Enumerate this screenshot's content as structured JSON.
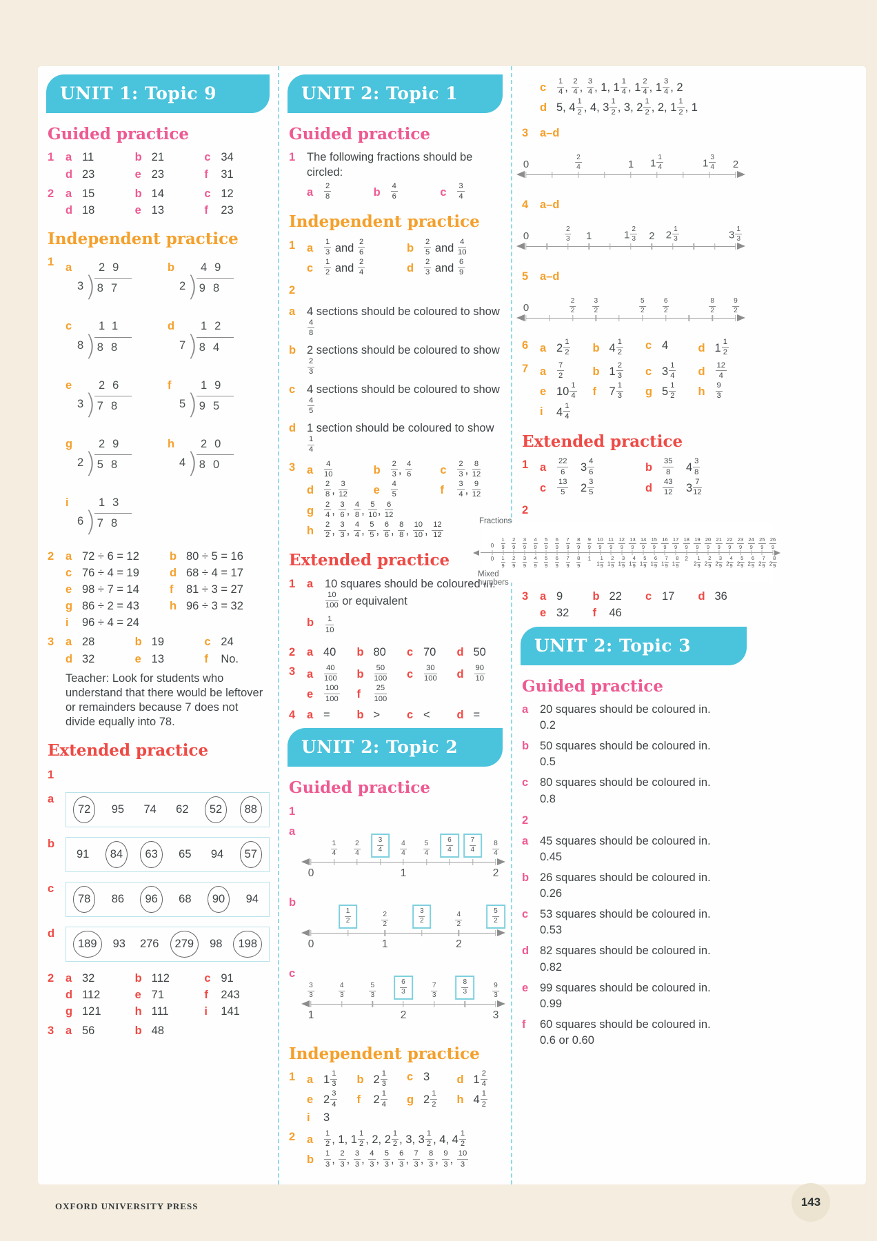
{
  "footer": {
    "press": "OXFORD UNIVERSITY PRESS",
    "page": "143"
  },
  "colors": {
    "banner_teal": "#4ac3dc",
    "pink": "#ee5a92",
    "orange": "#f4a02c",
    "red": "#ee4a45",
    "body": "#3f4446",
    "cream": "#f4ede0",
    "box_teal": "#7ed0de"
  },
  "u1t9": {
    "title": "UNIT 1: Topic 9",
    "gp_h": "Guided practice",
    "ip_h": "Independent practice",
    "ep_h": "Extended practice",
    "gp1": {
      "n": "1",
      "items": [
        {
          "l": "a",
          "v": "11"
        },
        {
          "l": "b",
          "v": "21"
        },
        {
          "l": "c",
          "v": "34"
        },
        {
          "l": "d",
          "v": "23"
        },
        {
          "l": "e",
          "v": "23"
        },
        {
          "l": "f",
          "v": "31"
        }
      ]
    },
    "gp2": {
      "n": "2",
      "items": [
        {
          "l": "a",
          "v": "15"
        },
        {
          "l": "b",
          "v": "14"
        },
        {
          "l": "c",
          "v": "12"
        },
        {
          "l": "d",
          "v": "18"
        },
        {
          "l": "e",
          "v": "13"
        },
        {
          "l": "f",
          "v": "23"
        }
      ]
    },
    "div": {
      "n": "1",
      "items": [
        {
          "l": "a",
          "q": "29",
          "s": "3",
          "d": "87"
        },
        {
          "l": "b",
          "q": "49",
          "s": "2",
          "d": "98"
        },
        {
          "l": "c",
          "q": "11",
          "s": "8",
          "d": "88"
        },
        {
          "l": "d",
          "q": "12",
          "s": "7",
          "d": "84"
        },
        {
          "l": "e",
          "q": "26",
          "s": "3",
          "d": "78"
        },
        {
          "l": "f",
          "q": "19",
          "s": "5",
          "d": "95"
        },
        {
          "l": "g",
          "q": "29",
          "s": "2",
          "d": "58"
        },
        {
          "l": "h",
          "q": "20",
          "s": "4",
          "d": "80"
        },
        {
          "l": "i",
          "q": "13",
          "s": "6",
          "d": "78"
        }
      ]
    },
    "ip2": {
      "n": "2",
      "items": [
        {
          "l": "a",
          "v": "72 ÷ 6 = 12"
        },
        {
          "l": "b",
          "v": "80 ÷ 5 = 16"
        },
        {
          "l": "c",
          "v": "76 ÷ 4 = 19"
        },
        {
          "l": "d",
          "v": "68 ÷ 4 = 17"
        },
        {
          "l": "e",
          "v": "98 ÷ 7 = 14"
        },
        {
          "l": "f",
          "v": "81 ÷ 3 = 27"
        },
        {
          "l": "g",
          "v": "86 ÷ 2 = 43"
        },
        {
          "l": "h",
          "v": "96 ÷ 3 = 32"
        },
        {
          "l": "i",
          "v": "96 ÷ 4 = 24"
        }
      ]
    },
    "ip3": {
      "n": "3",
      "items": [
        {
          "l": "a",
          "v": "28"
        },
        {
          "l": "b",
          "v": "19"
        },
        {
          "l": "c",
          "v": "24"
        },
        {
          "l": "d",
          "v": "32"
        },
        {
          "l": "e",
          "v": "13"
        },
        {
          "l": "f",
          "v": "No."
        }
      ]
    },
    "note": "Teacher: Look for students who understand that there would be leftover or remainders because 7 does not divide equally into 78.",
    "ep1": {
      "n": "1",
      "rows": [
        {
          "l": "a",
          "items": [
            {
              "v": "72",
              "c": true
            },
            {
              "v": "95"
            },
            {
              "v": "74"
            },
            {
              "v": "62"
            },
            {
              "v": "52",
              "c": true
            },
            {
              "v": "88",
              "c": true
            }
          ]
        },
        {
          "l": "b",
          "items": [
            {
              "v": "91"
            },
            {
              "v": "84",
              "c": true
            },
            {
              "v": "63",
              "c": true
            },
            {
              "v": "65"
            },
            {
              "v": "94"
            },
            {
              "v": "57",
              "c": true
            }
          ]
        },
        {
          "l": "c",
          "items": [
            {
              "v": "78",
              "c": true
            },
            {
              "v": "86"
            },
            {
              "v": "96",
              "c": true
            },
            {
              "v": "68"
            },
            {
              "v": "90",
              "c": true
            },
            {
              "v": "94"
            }
          ]
        },
        {
          "l": "d",
          "items": [
            {
              "v": "189",
              "c": true
            },
            {
              "v": "93"
            },
            {
              "v": "276"
            },
            {
              "v": "279",
              "c": true
            },
            {
              "v": "98"
            },
            {
              "v": "198",
              "c": true
            }
          ]
        }
      ]
    },
    "ep2": {
      "n": "2",
      "items": [
        {
          "l": "a",
          "v": "32"
        },
        {
          "l": "b",
          "v": "112"
        },
        {
          "l": "c",
          "v": "91"
        },
        {
          "l": "d",
          "v": "112"
        },
        {
          "l": "e",
          "v": "71"
        },
        {
          "l": "f",
          "v": "243"
        },
        {
          "l": "g",
          "v": "121"
        },
        {
          "l": "h",
          "v": "111"
        },
        {
          "l": "i",
          "v": "141"
        }
      ]
    },
    "ep3": {
      "n": "3",
      "items": [
        {
          "l": "a",
          "v": "56"
        },
        {
          "l": "b",
          "v": "48"
        }
      ]
    }
  },
  "u2t1": {
    "title": "UNIT 2: Topic 1",
    "gp_h": "Guided practice",
    "ip_h": "Independent practice",
    "ep_h": "Extended practice",
    "gp1": {
      "n": "1",
      "text": "The following fractions should be circled:",
      "items": [
        {
          "l": "a",
          "v": "{2/8}"
        },
        {
          "l": "b",
          "v": "{4/6}"
        },
        {
          "l": "c",
          "v": "{3/4}"
        }
      ]
    },
    "ip1": {
      "n": "1",
      "items": [
        {
          "l": "a",
          "v": "{1/3} and {2/6}"
        },
        {
          "l": "b",
          "v": "{2/5} and {4/10}"
        },
        {
          "l": "c",
          "v": "{1/2} and {2/4}"
        },
        {
          "l": "d",
          "v": "{2/3} and {6/9}"
        }
      ]
    },
    "ip2": {
      "n": "2",
      "items": [
        {
          "l": "a",
          "t": "4 sections should be coloured to show {4/8}"
        },
        {
          "l": "b",
          "t": "2 sections should be coloured to show {2/3}"
        },
        {
          "l": "c",
          "t": "4 sections should be coloured to show {4/5}"
        },
        {
          "l": "d",
          "t": "1 section should be coloured to show {1/4}"
        }
      ]
    },
    "ip3a": {
      "n": "3",
      "items": [
        {
          "l": "a",
          "v": "{4/10}"
        },
        {
          "l": "b",
          "v": "{2/3}, {4/6}"
        },
        {
          "l": "c",
          "v": "{2/3}, {8/12}"
        },
        {
          "l": "d",
          "v": "{2/8}, {3/12}"
        },
        {
          "l": "e",
          "v": "{4/5}"
        },
        {
          "l": "f",
          "v": "{3/4}, {9/12}"
        }
      ]
    },
    "ip3g": {
      "n": "",
      "items": [
        {
          "l": "g",
          "v": "{2/4}, {3/6}, {4/8}, {5/10}, {6/12}"
        }
      ]
    },
    "ip3h": {
      "n": "",
      "items": [
        {
          "l": "h",
          "v": "{2/2}, {3/3}, {4/4}, {5/5}, {6/6}, {8/8}, {10/10}, {12/12}"
        }
      ]
    },
    "ep1": {
      "n": "1",
      "items": [
        {
          "l": "a",
          "t": "10 squares should be coloured in: {10/100} or equivalent"
        },
        {
          "l": "b",
          "t": "{1/10}"
        }
      ]
    },
    "ep2": {
      "n": "2",
      "items": [
        {
          "l": "a",
          "v": "40"
        },
        {
          "l": "b",
          "v": "80"
        },
        {
          "l": "c",
          "v": "70"
        },
        {
          "l": "d",
          "v": "50"
        }
      ]
    },
    "ep3": {
      "n": "3",
      "items": [
        {
          "l": "a",
          "v": "{40/100}"
        },
        {
          "l": "b",
          "v": "{50/100}"
        },
        {
          "l": "c",
          "v": "{30/100}"
        },
        {
          "l": "d",
          "v": "{90/10}"
        },
        {
          "l": "e",
          "v": "{100/100}"
        },
        {
          "l": "f",
          "v": "{25/100}"
        }
      ]
    },
    "ep4": {
      "n": "4",
      "items": [
        {
          "l": "a",
          "v": "="
        },
        {
          "l": "b",
          "v": ">"
        },
        {
          "l": "c",
          "v": "<"
        },
        {
          "l": "d",
          "v": "="
        }
      ]
    }
  },
  "u2t2": {
    "title": "UNIT 2: Topic 2",
    "gp_h": "Guided practice",
    "ip_h": "Independent practice",
    "ep_h": "Extended practice",
    "gp1n": "1",
    "nla": {
      "l": "a",
      "cls": "nl-gp",
      "ticks": [
        0,
        12.5,
        25,
        37.5,
        50,
        62.5,
        75,
        87.5,
        100
      ],
      "above": [
        {
          "t": "{1/4}",
          "p": 12.5
        },
        {
          "t": "{2/4}",
          "p": 25
        },
        {
          "t": "{3/4}",
          "p": 37.5,
          "box": true
        },
        {
          "t": "{4/4}",
          "p": 50
        },
        {
          "t": "{5/4}",
          "p": 62.5
        },
        {
          "t": "{6/4}",
          "p": 75,
          "box": true
        },
        {
          "t": "{7/4}",
          "p": 87.5,
          "box": true
        },
        {
          "t": "{8/4}",
          "p": 100
        }
      ],
      "below": [
        {
          "t": "0",
          "p": 0
        },
        {
          "t": "1",
          "p": 50
        },
        {
          "t": "2",
          "p": 100
        }
      ]
    },
    "nlb": {
      "l": "b",
      "cls": "nl-gp",
      "ticks": [
        0,
        20,
        40,
        60,
        80,
        100
      ],
      "above": [
        {
          "t": "{1/2}",
          "p": 20,
          "box": true
        },
        {
          "t": "{2/2}",
          "p": 40
        },
        {
          "t": "{3/2}",
          "p": 60,
          "box": true
        },
        {
          "t": "{4/2}",
          "p": 80
        },
        {
          "t": "{5/2}",
          "p": 100,
          "box": true
        }
      ],
      "below": [
        {
          "t": "0",
          "p": 0
        },
        {
          "t": "1",
          "p": 40
        },
        {
          "t": "2",
          "p": 80
        }
      ]
    },
    "nlc": {
      "l": "c",
      "cls": "nl-gp",
      "ticks": [
        0,
        16.67,
        33.33,
        50,
        66.67,
        83.33,
        100
      ],
      "above": [
        {
          "t": "{3/3}",
          "p": 0
        },
        {
          "t": "{4/3}",
          "p": 16.67
        },
        {
          "t": "{5/3}",
          "p": 33.33
        },
        {
          "t": "{6/3}",
          "p": 50,
          "box": true
        },
        {
          "t": "{7/3}",
          "p": 66.67
        },
        {
          "t": "{8/3}",
          "p": 83.33,
          "box": true
        },
        {
          "t": "{9/3}",
          "p": 100
        }
      ],
      "below": [
        {
          "t": "1",
          "p": 0
        },
        {
          "t": "2",
          "p": 50
        },
        {
          "t": "3",
          "p": 100
        }
      ]
    },
    "ip1": {
      "n": "1",
      "items": [
        {
          "l": "a",
          "v": "1{1/3}"
        },
        {
          "l": "b",
          "v": "2{1/3}"
        },
        {
          "l": "c",
          "v": "3"
        },
        {
          "l": "d",
          "v": "1{2/4}"
        },
        {
          "l": "e",
          "v": "2{3/4}"
        },
        {
          "l": "f",
          "v": "2{1/4}"
        },
        {
          "l": "g",
          "v": "2{1/2}"
        },
        {
          "l": "h",
          "v": "4{1/2}"
        },
        {
          "l": "i",
          "v": "3"
        }
      ]
    },
    "ip2": {
      "n": "2",
      "items": [
        {
          "l": "a",
          "v": "{1/2}, 1, 1{1/2}, 2, 2{1/2}, 3, 3{1/2}, 4, 4{1/2}"
        },
        {
          "l": "b",
          "v": "{1/3}, {2/3}, {3/3}, {4/3}, {5/3}, {6/3}, {7/3}, {8/3}, {9/3}, {10/3}"
        }
      ]
    },
    "ip2cd": {
      "n": "",
      "items": [
        {
          "l": "c",
          "v": "{1/4}, {2/4}, {3/4}, 1, 1{1/4}, 1{2/4}, 1{3/4}, 2"
        },
        {
          "l": "d",
          "v": "5, 4{1/2}, 4, 3{1/2}, 3, 2{1/2}, 2, 1{1/2}, 1"
        }
      ]
    },
    "q3n": "3",
    "q3r": "a–d",
    "nl3": {
      "cls": "nl-r",
      "ticks": [
        0,
        12.5,
        25,
        37.5,
        50,
        62.5,
        75,
        87.5,
        100
      ],
      "above": [
        {
          "t": "0",
          "p": 0
        },
        {
          "t": "{2/4}",
          "p": 25
        },
        {
          "t": "1",
          "p": 50
        },
        {
          "t": "1{1/4}",
          "p": 62.5
        },
        {
          "t": "1{3/4}",
          "p": 87.5
        },
        {
          "t": "2",
          "p": 100
        }
      ],
      "below": []
    },
    "q4n": "4",
    "q4r": "a–d",
    "nl4": {
      "cls": "nl-r",
      "ticks": [
        0,
        10,
        20,
        30,
        40,
        50,
        60,
        70,
        80,
        90,
        100
      ],
      "above": [
        {
          "t": "0",
          "p": 0
        },
        {
          "t": "{2/3}",
          "p": 20
        },
        {
          "t": "1",
          "p": 30
        },
        {
          "t": "1{2/3}",
          "p": 50
        },
        {
          "t": "2",
          "p": 60
        },
        {
          "t": "2{1/3}",
          "p": 70
        },
        {
          "t": "3{1/3}",
          "p": 100
        }
      ],
      "below": []
    },
    "q5n": "5",
    "q5r": "a–d",
    "nl5": {
      "cls": "nl-r",
      "ticks": [
        0,
        11.11,
        22.22,
        33.33,
        44.44,
        55.56,
        66.67,
        77.78,
        88.89,
        100
      ],
      "above": [
        {
          "t": "0",
          "p": 0
        },
        {
          "t": "{2/2}",
          "p": 22.22
        },
        {
          "t": "{3/2}",
          "p": 33.33
        },
        {
          "t": "{5/2}",
          "p": 55.56
        },
        {
          "t": "{6/2}",
          "p": 66.67
        },
        {
          "t": "{8/2}",
          "p": 88.89
        },
        {
          "t": "{9/2}",
          "p": 100
        }
      ],
      "below": []
    },
    "ip6": {
      "n": "6",
      "items": [
        {
          "l": "a",
          "v": "2{1/2}"
        },
        {
          "l": "b",
          "v": "4{1/2}"
        },
        {
          "l": "c",
          "v": "4"
        },
        {
          "l": "d",
          "v": "1{1/2}"
        }
      ]
    },
    "ip7": {
      "n": "7",
      "items": [
        {
          "l": "a",
          "v": "{7/2}"
        },
        {
          "l": "b",
          "v": "1{2/3}"
        },
        {
          "l": "c",
          "v": "3{1/4}"
        },
        {
          "l": "d",
          "v": "{12/4}"
        },
        {
          "l": "e",
          "v": "10{1/4}"
        },
        {
          "l": "f",
          "v": "7{1/3}"
        },
        {
          "l": "g",
          "v": "5{1/2}"
        },
        {
          "l": "h",
          "v": "{9/3}"
        },
        {
          "l": "i",
          "v": "4{1/4}"
        }
      ]
    },
    "ep1": {
      "n": "1",
      "items": [
        {
          "l": "a",
          "v": "{22/6} 3{4/6}"
        },
        {
          "l": "b",
          "v": "{35/8} 4{3/8}"
        },
        {
          "l": "c",
          "v": "{13/5} 2{3/5}"
        },
        {
          "l": "d",
          "v": "{43/12} 3{7/12}"
        }
      ]
    },
    "ep2n": "2",
    "dual": {
      "top_label": "Fractions",
      "bottom_label": "Mixed numbers",
      "top": [
        "0",
        "{1/9}",
        "{2/9}",
        "{3/9}",
        "{4/9}",
        "{5/9}",
        "{6/9}",
        "{7/9}",
        "{8/9}",
        "{9/9}",
        "{10/9}",
        "{11/9}",
        "{12/9}",
        "{13/9}",
        "{14/9}",
        "{15/9}",
        "{16/9}",
        "{17/9}",
        "{18/9}",
        "{19/9}",
        "{20/9}",
        "{21/9}",
        "{22/9}",
        "{23/9}",
        "{24/9}",
        "{25/9}",
        "{26/9}"
      ],
      "bottom": [
        "0",
        "{1/9}",
        "{2/9}",
        "{3/9}",
        "{4/9}",
        "{5/9}",
        "{6/9}",
        "{7/9}",
        "{8/9}",
        "1",
        "1{1/9}",
        "1{2/9}",
        "1{3/9}",
        "1{4/9}",
        "1{5/9}",
        "1{6/9}",
        "1{7/9}",
        "1{8/9}",
        "2",
        "2{1/9}",
        "2{2/9}",
        "2{3/9}",
        "2{4/9}",
        "2{5/9}",
        "2{6/9}",
        "2{7/9}",
        "2{8/9}"
      ]
    },
    "ep3": {
      "n": "3",
      "items": [
        {
          "l": "a",
          "v": "9"
        },
        {
          "l": "b",
          "v": "22"
        },
        {
          "l": "c",
          "v": "17"
        },
        {
          "l": "d",
          "v": "36"
        },
        {
          "l": "e",
          "v": "32"
        },
        {
          "l": "f",
          "v": "46"
        }
      ]
    }
  },
  "u2t3": {
    "title": "UNIT 2: Topic 3",
    "gp_h": "Guided practice",
    "g1": {
      "n": "",
      "items": [
        {
          "l": "a",
          "t": "20 squares should be coloured in.",
          "v2": "0.2"
        },
        {
          "l": "b",
          "t": "50 squares should be coloured in.",
          "v2": "0.5"
        },
        {
          "l": "c",
          "t": "80 squares should be coloured in.",
          "v2": "0.8"
        }
      ]
    },
    "g2": {
      "n": "2",
      "items": [
        {
          "l": "a",
          "t": "45 squares should be coloured in.",
          "v2": "0.45"
        },
        {
          "l": "b",
          "t": "26 squares should be coloured in.",
          "v2": "0.26"
        },
        {
          "l": "c",
          "t": "53 squares should be coloured in.",
          "v2": "0.53"
        },
        {
          "l": "d",
          "t": "82 squares should be coloured in.",
          "v2": "0.82"
        },
        {
          "l": "e",
          "t": "99 squares should be coloured in.",
          "v2": "0.99"
        },
        {
          "l": "f",
          "t": "60 squares should be coloured in.",
          "v2": "0.6 or 0.60"
        }
      ]
    }
  }
}
